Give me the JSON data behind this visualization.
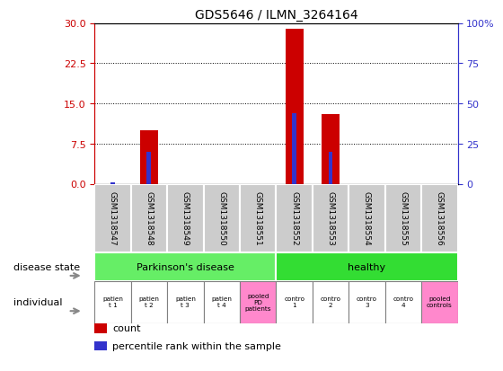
{
  "title": "GDS5646 / ILMN_3264164",
  "samples": [
    "GSM1318547",
    "GSM1318548",
    "GSM1318549",
    "GSM1318550",
    "GSM1318551",
    "GSM1318552",
    "GSM1318553",
    "GSM1318554",
    "GSM1318555",
    "GSM1318556"
  ],
  "counts": [
    0,
    10,
    0,
    0,
    0,
    29,
    13,
    0,
    0,
    0
  ],
  "percentiles": [
    1,
    20,
    0,
    0,
    0,
    44,
    20,
    0,
    0,
    0
  ],
  "ylim_left": [
    0,
    30
  ],
  "ylim_right": [
    0,
    100
  ],
  "yticks_left": [
    0,
    7.5,
    15,
    22.5,
    30
  ],
  "yticks_right": [
    0,
    25,
    50,
    75,
    100
  ],
  "bar_color_red": "#cc0000",
  "bar_color_blue": "#3333cc",
  "disease_state_colors": [
    "#66ee66",
    "#33dd33"
  ],
  "individual_bg_normal": "#ffffff",
  "individual_bg_pooled": "#ff88cc",
  "individual_labels": [
    "patien\nt 1",
    "patien\nt 2",
    "patien\nt 3",
    "patien\nt 4",
    "pooled\nPD\npatients",
    "contro\n1",
    "contro\n2",
    "contro\n3",
    "contro\n4",
    "pooled\ncontrols"
  ],
  "individual_bg_colors": [
    "#ffffff",
    "#ffffff",
    "#ffffff",
    "#ffffff",
    "#ff88cc",
    "#ffffff",
    "#ffffff",
    "#ffffff",
    "#ffffff",
    "#ff88cc"
  ],
  "sample_bg_color": "#cccccc",
  "tick_color_left": "#cc0000",
  "tick_color_right": "#3333cc",
  "legend_red_label": "count",
  "legend_blue_label": "percentile rank within the sample"
}
